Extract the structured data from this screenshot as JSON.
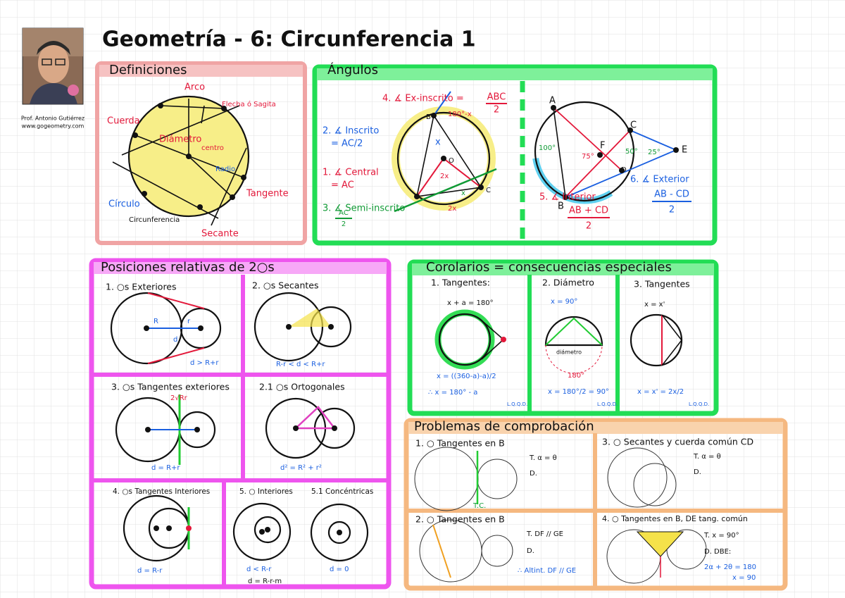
{
  "header": {
    "title": "Geometría - 6: Circunferencia 1",
    "author": "Prof. Antonio Gutiérrez",
    "website": "www.gogeometry.com"
  },
  "definiciones": {
    "title": "Definiciones",
    "labels": [
      "Arco",
      "Flecha ó Sagita",
      "Cuerda",
      "Diámetro",
      "centro",
      "Radio",
      "Tangente",
      "Círculo",
      "Circunferencia",
      "Secante"
    ]
  },
  "angulos": {
    "title": "Ángulos",
    "items": [
      {
        "name": "1. ∡ Central",
        "formula": "= AC"
      },
      {
        "name": "2. ∡ Inscrito",
        "formula": "= AC/2"
      },
      {
        "name": "3. ∡ Semi-inscrito",
        "numerator": "AC",
        "denominator": "2"
      },
      {
        "name": "4. ∡ Ex-inscrito =",
        "numerator": "ABC",
        "denominator": "2"
      },
      {
        "name": "5. ∡ Interior",
        "numerator": "AB + CD",
        "denominator": "2"
      },
      {
        "name": "6. ∡ Exterior",
        "numerator": "AB - CD",
        "denominator": "2"
      }
    ],
    "points": [
      "A",
      "B",
      "C",
      "D",
      "E",
      "F",
      "O",
      "B",
      "C"
    ],
    "measures": [
      "180°-x",
      "x",
      "2x",
      "2x",
      "x",
      "100°",
      "75°",
      "50°",
      "25°"
    ]
  },
  "posiciones": {
    "title": "Posiciones relativas de 2○s",
    "panels": [
      {
        "name": "1. ○s Exteriores",
        "formula": "d > R+r"
      },
      {
        "name": "2. ○s Secantes",
        "formula": "R-r < d < R+r"
      },
      {
        "name": "3. ○s Tangentes exteriores",
        "formula": "d = R+r",
        "note": "2√Rr"
      },
      {
        "name": "2.1 ○s Ortogonales",
        "formula": "d² = R² + r²"
      },
      {
        "name": "4. ○s Tangentes Interiores",
        "formula": "d = R-r"
      },
      {
        "name": "5. ○ Interiores",
        "formula": "d < R-r",
        "note": "d = R-r-m"
      },
      {
        "name": "5.1 Concéntricas",
        "formula": "d = 0"
      }
    ],
    "symbols": [
      "R",
      "r",
      "d"
    ]
  },
  "corolarios": {
    "title": "Corolarios = consecuencias especiales",
    "qed": "L.Q.Q.D.",
    "panels": [
      {
        "name": "1. Tangentes:",
        "lines": [
          "x + a = 180°",
          "x = ((360-a)-a)/2",
          "∴ x = 180° - a"
        ]
      },
      {
        "name": "2. Diámetro",
        "lines": [
          "x = 90°",
          "diámetro",
          "180°",
          "x = 180°/2 = 90°"
        ]
      },
      {
        "name": "3. Tangentes",
        "lines": [
          "x = x'",
          "x = x' = 2x/2"
        ]
      }
    ]
  },
  "problemas": {
    "title": "Problemas de comprobación",
    "panels": [
      {
        "name": "1. ○ Tangentes en B",
        "lines": [
          "T. α = θ",
          "D.",
          "T.C."
        ]
      },
      {
        "name": "3. ○ Secantes y cuerda común CD",
        "lines": [
          "T. α = θ",
          "D."
        ]
      },
      {
        "name": "2. ○ Tangentes en B",
        "lines": [
          "T. DF // GE",
          "D.",
          "∴ Altint. DF // GE"
        ]
      },
      {
        "name": "4. ○ Tangentes en B, DE tang. común",
        "lines": [
          "T. x = 90°",
          "D. DBE:",
          "2α + 2θ = 180",
          "x = 90"
        ]
      }
    ]
  }
}
